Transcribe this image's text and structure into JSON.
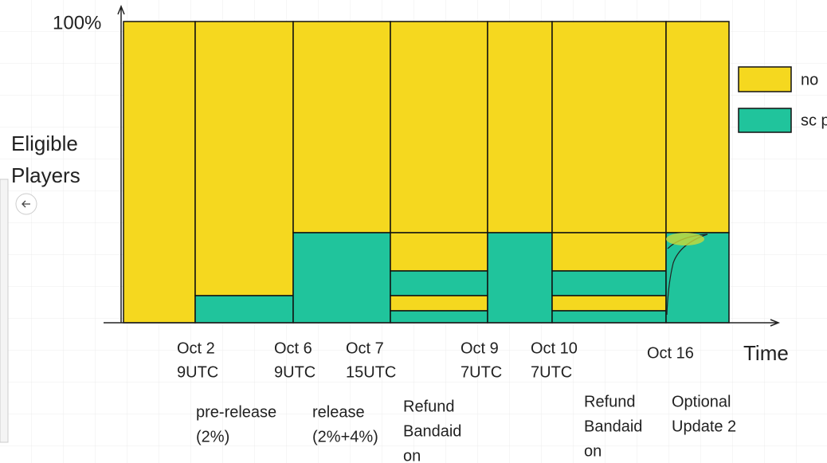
{
  "axis": {
    "y_top": "100%",
    "y_label": [
      "Eligible",
      "Players"
    ],
    "x_label": "Time"
  },
  "dates": [
    [
      "Oct 2",
      "9UTC"
    ],
    [
      "Oct 6",
      "9UTC"
    ],
    [
      "Oct 7",
      "15UTC"
    ],
    [
      "Oct 9",
      "7UTC"
    ],
    [
      "Oct 10",
      "7UTC"
    ],
    [
      "Oct 16"
    ]
  ],
  "annotations": [
    [
      "pre-release",
      "(2%)"
    ],
    [
      "release",
      "(2%+4%)"
    ],
    [
      "Refund",
      "Bandaid",
      "on"
    ],
    [
      "Refund",
      "Bandaid",
      "on"
    ],
    [
      "Optional",
      "Update 2"
    ]
  ],
  "legend": [
    "no",
    "sc p"
  ]
}
